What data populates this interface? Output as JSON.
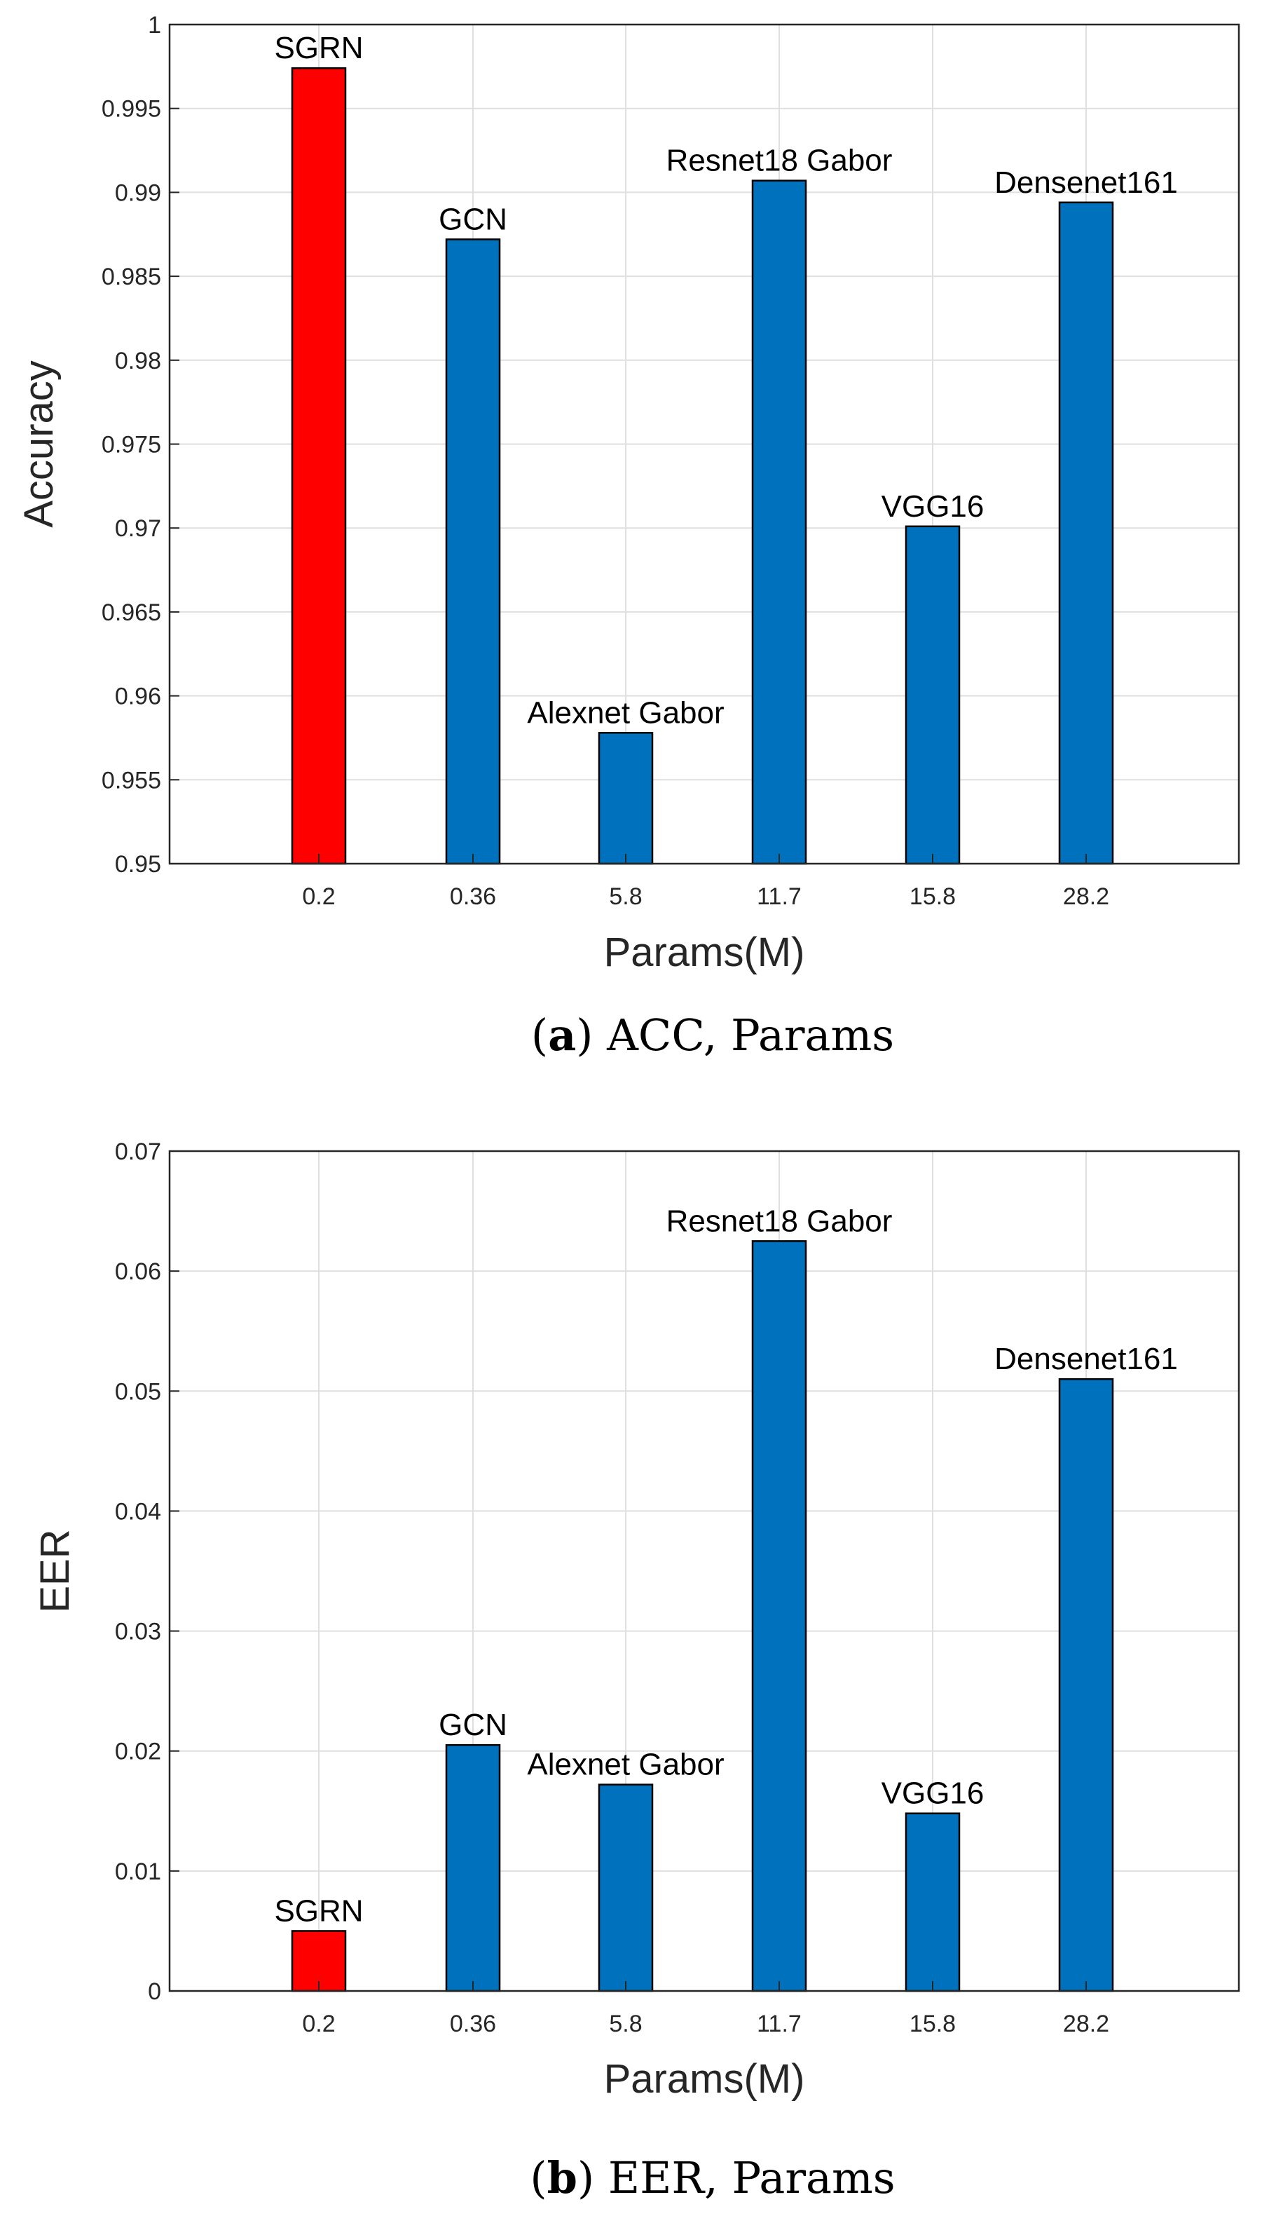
{
  "colors": {
    "highlight": "#ff0000",
    "default": "#0072bd",
    "grid": "#dfdfdf",
    "axis": "#262626"
  },
  "chart_data": [
    {
      "type": "bar",
      "caption_letter": "a",
      "caption_text": "ACC, Params",
      "xlabel": "Params(M)",
      "ylabel": "Accuracy",
      "grid": true,
      "ylim": [
        0.95,
        1
      ],
      "yticks": [
        "0.95",
        "0.955",
        "0.96",
        "0.965",
        "0.97",
        "0.975",
        "0.98",
        "0.985",
        "0.99",
        "0.995",
        "1"
      ],
      "categories": [
        "0.2",
        "0.36",
        "5.8",
        "11.7",
        "15.8",
        "28.2"
      ],
      "values": [
        0.9974,
        0.9872,
        0.9578,
        0.9907,
        0.9701,
        0.9894
      ],
      "bar_labels": [
        "SGRN",
        "GCN",
        "Alexnet Gabor",
        "Resnet18 Gabor",
        "VGG16",
        "Densenet161"
      ],
      "highlight_index": 0
    },
    {
      "type": "bar",
      "caption_letter": "b",
      "caption_text": "EER, Params",
      "xlabel": "Params(M)",
      "ylabel": "EER",
      "grid": true,
      "ylim": [
        0,
        0.07
      ],
      "yticks": [
        "0",
        "0.01",
        "0.02",
        "0.03",
        "0.04",
        "0.05",
        "0.06",
        "0.07"
      ],
      "categories": [
        "0.2",
        "0.36",
        "5.8",
        "11.7",
        "15.8",
        "28.2"
      ],
      "values": [
        0.005,
        0.0205,
        0.0172,
        0.0625,
        0.0148,
        0.051
      ],
      "bar_labels": [
        "SGRN",
        "GCN",
        "Alexnet Gabor",
        "Resnet18 Gabor",
        "VGG16",
        "Densenet161"
      ],
      "highlight_index": 0
    }
  ]
}
